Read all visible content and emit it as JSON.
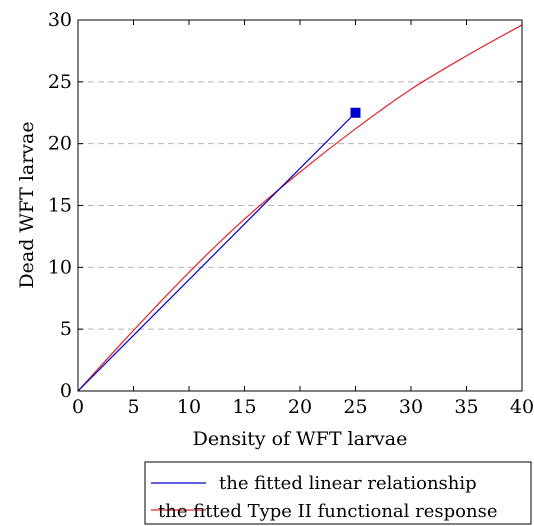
{
  "chart_data": {
    "type": "line",
    "xlabel": "Density of WFT larvae",
    "ylabel": "Dead WFT larvae",
    "xlim": [
      0,
      40
    ],
    "ylim": [
      0,
      30
    ],
    "x_ticks": [
      0,
      5,
      10,
      15,
      20,
      25,
      30,
      35,
      40
    ],
    "y_ticks": [
      0,
      5,
      10,
      15,
      20,
      25,
      30
    ],
    "grid": "horizontal dashed",
    "legend_position": "below",
    "series": [
      {
        "name": "the fitted linear relationship",
        "color": "#0000cc",
        "x": [
          0,
          25
        ],
        "y": [
          0,
          22.5
        ],
        "end_marker": "square"
      },
      {
        "name": "the fitted Type II functional response",
        "color": "#e0242b",
        "x": [
          0,
          5,
          10,
          15,
          20,
          25,
          30,
          35,
          40
        ],
        "y": [
          0,
          4.9,
          9.6,
          13.9,
          17.7,
          21.2,
          24.4,
          27.1,
          29.6
        ]
      }
    ]
  }
}
